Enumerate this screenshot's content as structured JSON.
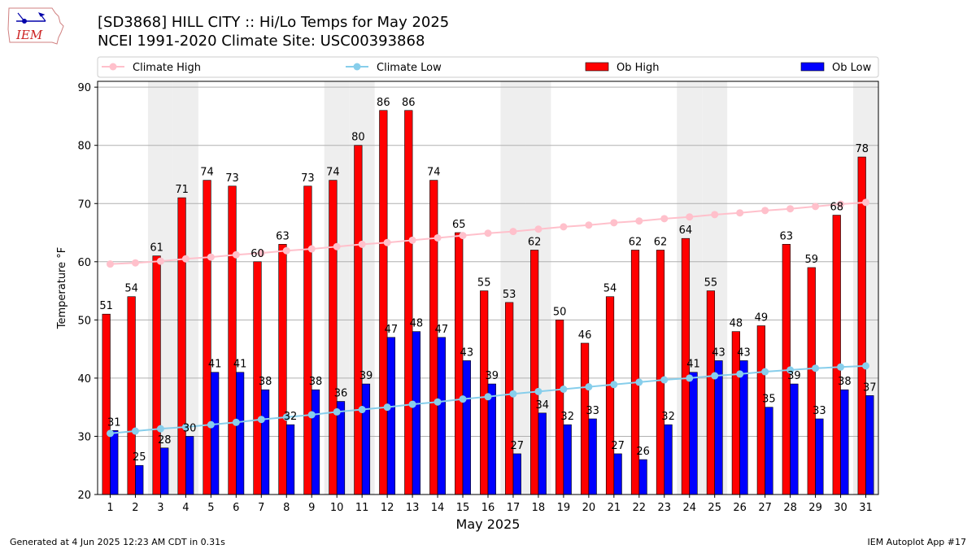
{
  "header": {
    "title": "[SD3868] HILL CITY :: Hi/Lo Temps for May 2025",
    "subtitle": "NCEI 1991-2020 Climate Site: USC00393868",
    "logo_text": "IEM"
  },
  "footer": {
    "left": "Generated at 4 Jun 2025 12:23 AM CDT in 0.31s",
    "right": "IEM Autoplot App #17"
  },
  "colors": {
    "ob_high": "#ff0000",
    "ob_low": "#0000ff",
    "climate_high": "#ffc0cb",
    "climate_low": "#87ceeb",
    "weekend_shade": "#eeeeee",
    "grid": "#b0b0b0"
  },
  "chart_data": {
    "type": "bar",
    "xlabel": "May 2025",
    "ylabel": "Temperature °F",
    "ylim": [
      20,
      91
    ],
    "yticks": [
      20,
      30,
      40,
      50,
      60,
      70,
      80,
      90
    ],
    "grid": "horizontal",
    "legend_position": "top",
    "categories": [
      "1",
      "2",
      "3",
      "4",
      "5",
      "6",
      "7",
      "8",
      "9",
      "10",
      "11",
      "12",
      "13",
      "14",
      "15",
      "16",
      "17",
      "18",
      "19",
      "20",
      "21",
      "22",
      "23",
      "24",
      "25",
      "26",
      "27",
      "28",
      "29",
      "30",
      "31"
    ],
    "shaded_days": [
      3,
      4,
      10,
      11,
      17,
      18,
      24,
      25,
      31
    ],
    "series": [
      {
        "name": "Climate High",
        "kind": "line",
        "values": [
          59.6,
          59.8,
          60.1,
          60.5,
          60.8,
          61.2,
          61.5,
          61.9,
          62.2,
          62.6,
          63.0,
          63.3,
          63.7,
          64.1,
          64.5,
          64.9,
          65.2,
          65.6,
          66.0,
          66.3,
          66.7,
          67.0,
          67.4,
          67.7,
          68.1,
          68.4,
          68.8,
          69.1,
          69.5,
          69.9,
          70.2
        ]
      },
      {
        "name": "Climate Low",
        "kind": "line",
        "values": [
          30.5,
          30.9,
          31.3,
          31.6,
          32.0,
          32.4,
          32.9,
          33.3,
          33.7,
          34.2,
          34.6,
          35.0,
          35.5,
          35.9,
          36.4,
          36.8,
          37.3,
          37.7,
          38.1,
          38.5,
          38.9,
          39.3,
          39.7,
          40.0,
          40.4,
          40.7,
          41.1,
          41.4,
          41.7,
          41.9,
          42.1
        ]
      },
      {
        "name": "Ob High",
        "kind": "bar",
        "values": [
          51,
          54,
          61,
          71,
          74,
          73,
          60,
          63,
          73,
          74,
          80,
          86,
          86,
          74,
          65,
          55,
          53,
          62,
          50,
          46,
          54,
          62,
          62,
          64,
          55,
          48,
          49,
          63,
          59,
          68,
          78
        ]
      },
      {
        "name": "Ob Low",
        "kind": "bar",
        "values": [
          31,
          25,
          28,
          30,
          41,
          41,
          38,
          32,
          38,
          36,
          39,
          47,
          48,
          47,
          43,
          39,
          27,
          34,
          32,
          33,
          27,
          26,
          32,
          41,
          43,
          43,
          35,
          39,
          33,
          38,
          37
        ]
      }
    ]
  }
}
